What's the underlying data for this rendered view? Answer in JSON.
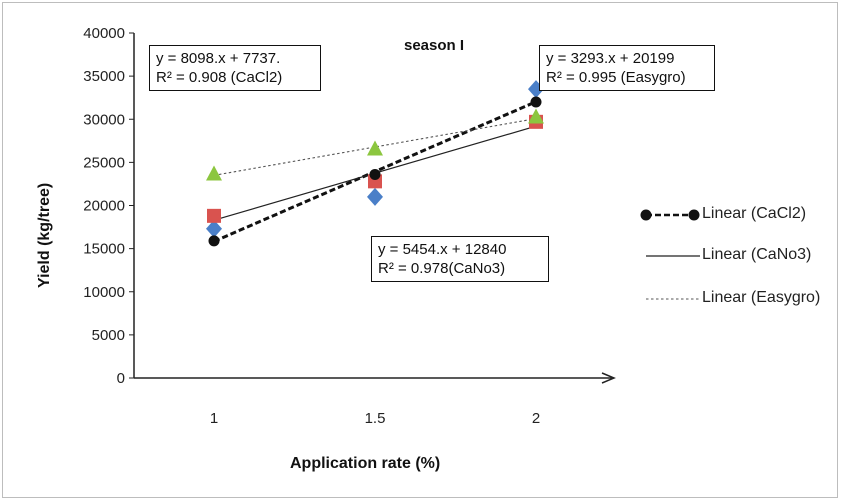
{
  "chart_data": {
    "type": "scatter",
    "title": "season I",
    "xlabel": "Application rate (%)",
    "ylabel": "Yield (kg/tree)",
    "x_ticks": [
      "1",
      "1.5",
      "2"
    ],
    "y_ticks": [
      "0",
      "5000",
      "10000",
      "15000",
      "20000",
      "25000",
      "30000",
      "35000",
      "40000"
    ],
    "ylim": [
      0,
      40000
    ],
    "x": [
      1,
      1.5,
      2
    ],
    "series": [
      {
        "key": "cacl2",
        "marker": "circle",
        "color": "#111111",
        "values": [
          15900,
          23600,
          32000
        ]
      },
      {
        "key": "cano3",
        "marker": "square",
        "color": "#d9534f",
        "values": [
          18800,
          22800,
          29700
        ]
      },
      {
        "key": "easygro",
        "marker": "triangle",
        "color": "#8cc63f",
        "values": [
          23600,
          26500,
          30200
        ]
      },
      {
        "key": "extra",
        "marker": "diamond",
        "color": "#4a7fc8",
        "values": [
          17300,
          21000,
          33500
        ]
      }
    ],
    "trendlines": [
      {
        "name": "Linear (CaCl2)",
        "style": "bold-dashed",
        "color": "#111111",
        "slope": 8098,
        "intercept": 7737,
        "equation": "y = 8098.x + 7737.",
        "r2": "R² = 0.908 (CaCl2)"
      },
      {
        "name": "Linear (CaNo3)",
        "style": "solid",
        "color": "#222222",
        "slope": 5454,
        "intercept": 12840,
        "equation": "y = 5454.x + 12840",
        "r2": "R² = 0.978(CaNo3)"
      },
      {
        "name": "Linear (Easygro)",
        "style": "dotted",
        "color": "#555555",
        "slope": 3293,
        "intercept": 20199,
        "equation": "y = 3293.x + 20199",
        "r2": "R² = 0.995 (Easygro)"
      }
    ],
    "legend_position": "right",
    "grid": false
  }
}
